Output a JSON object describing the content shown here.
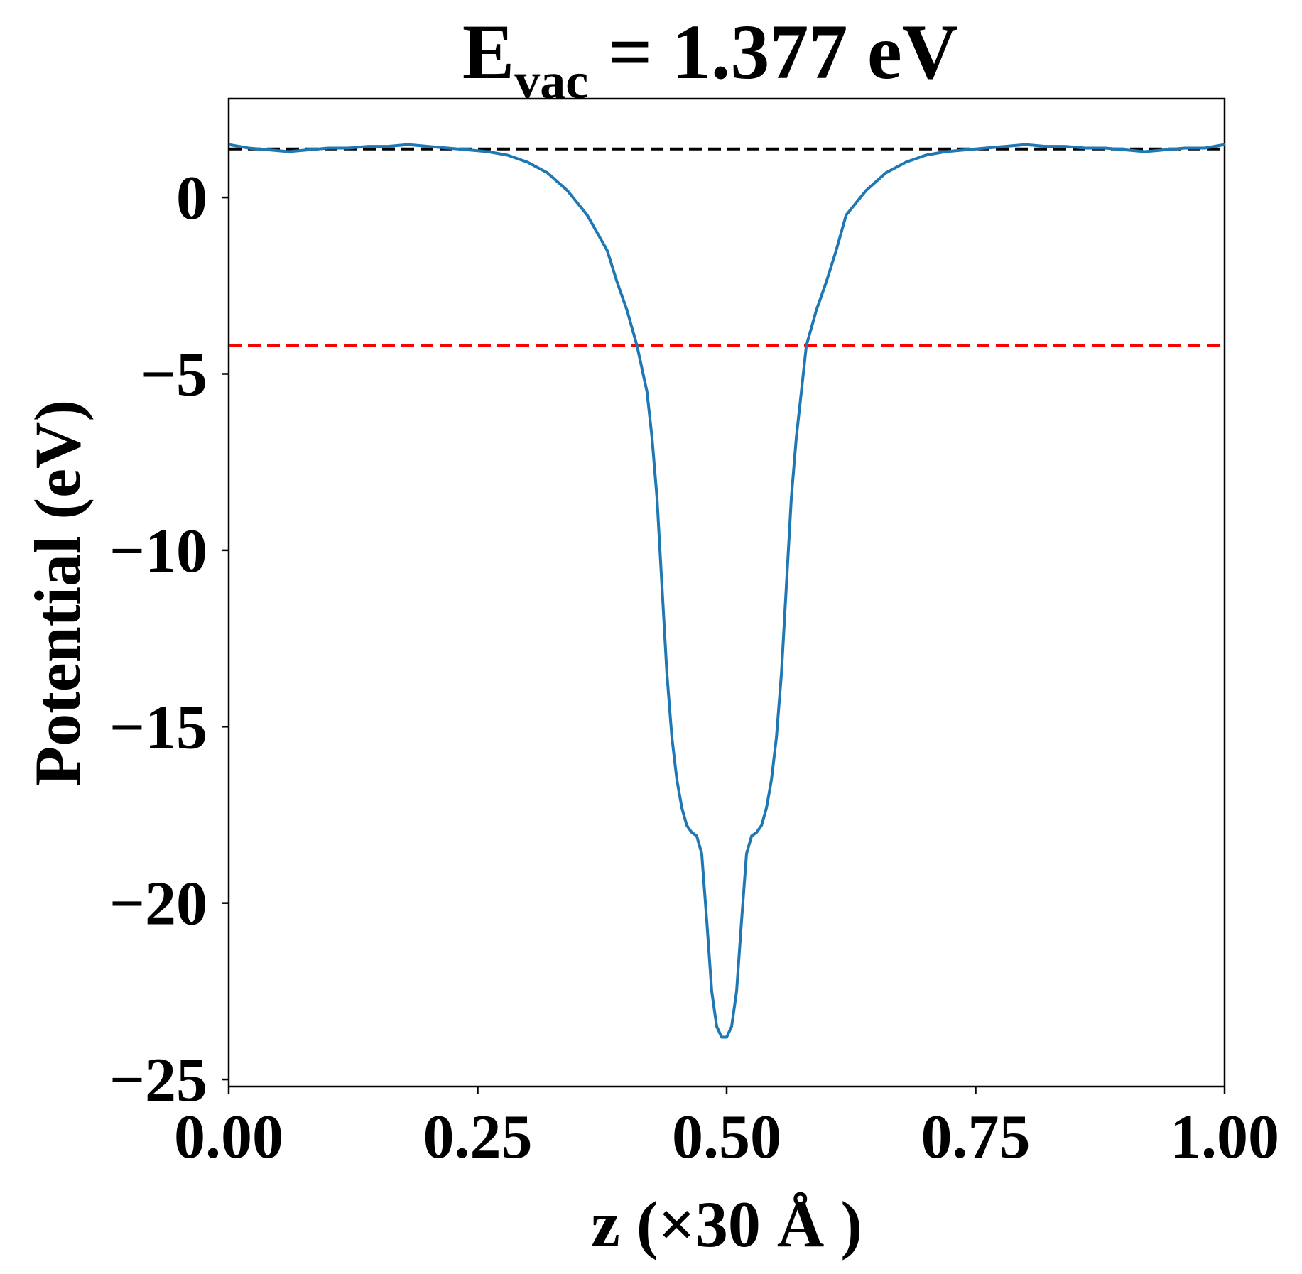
{
  "chart_data": {
    "type": "line",
    "title": {
      "prefix": "E",
      "subscript": "vac",
      "suffix": " = 1.377 eV"
    },
    "xlabel": "z (×30 Å )",
    "ylabel": "Potential (eV)",
    "xlim": [
      0.0,
      1.0
    ],
    "ylim": [
      -25.2,
      2.8
    ],
    "xticks": [
      0.0,
      0.25,
      0.5,
      0.75,
      1.0
    ],
    "xtick_labels": [
      "0.00",
      "0.25",
      "0.50",
      "0.75",
      "1.00"
    ],
    "yticks": [
      0,
      -5,
      -10,
      -15,
      -20,
      -25
    ],
    "ytick_labels": [
      "0",
      "−5",
      "−10",
      "−15",
      "−20",
      "−25"
    ],
    "grid": false,
    "series": [
      {
        "color": "#1f77b4",
        "x": [
          0.0,
          0.02,
          0.04,
          0.06,
          0.08,
          0.1,
          0.12,
          0.14,
          0.16,
          0.18,
          0.2,
          0.22,
          0.24,
          0.26,
          0.28,
          0.3,
          0.32,
          0.34,
          0.36,
          0.38,
          0.39,
          0.4,
          0.41,
          0.42,
          0.425,
          0.43,
          0.435,
          0.44,
          0.445,
          0.45,
          0.455,
          0.46,
          0.465,
          0.47,
          0.475,
          0.48,
          0.485,
          0.49,
          0.495,
          0.5,
          0.505,
          0.51,
          0.515,
          0.52,
          0.525,
          0.53,
          0.535,
          0.54,
          0.545,
          0.55,
          0.555,
          0.56,
          0.565,
          0.57,
          0.575,
          0.58,
          0.59,
          0.6,
          0.61,
          0.62,
          0.64,
          0.66,
          0.68,
          0.7,
          0.72,
          0.74,
          0.76,
          0.78,
          0.8,
          0.82,
          0.84,
          0.86,
          0.88,
          0.9,
          0.92,
          0.94,
          0.96,
          0.98,
          1.0
        ],
        "y": [
          1.5,
          1.4,
          1.35,
          1.3,
          1.35,
          1.4,
          1.4,
          1.45,
          1.45,
          1.5,
          1.45,
          1.4,
          1.35,
          1.3,
          1.2,
          1.0,
          0.7,
          0.2,
          -0.5,
          -1.5,
          -2.4,
          -3.2,
          -4.2,
          -5.5,
          -6.8,
          -8.5,
          -11.0,
          -13.5,
          -15.3,
          -16.5,
          -17.3,
          -17.8,
          -18.0,
          -18.1,
          -18.6,
          -20.5,
          -22.5,
          -23.5,
          -23.8,
          -23.8,
          -23.5,
          -22.5,
          -20.5,
          -18.6,
          -18.1,
          -18.0,
          -17.8,
          -17.3,
          -16.5,
          -15.3,
          -13.5,
          -11.0,
          -8.5,
          -6.8,
          -5.5,
          -4.2,
          -3.2,
          -2.4,
          -1.5,
          -0.5,
          0.2,
          0.7,
          1.0,
          1.2,
          1.3,
          1.35,
          1.4,
          1.45,
          1.5,
          1.45,
          1.45,
          1.4,
          1.4,
          1.35,
          1.3,
          1.35,
          1.4,
          1.4,
          1.5
        ]
      }
    ],
    "reference_lines": [
      {
        "y": 1.377,
        "color": "#000000",
        "style": "dashed"
      },
      {
        "y": -4.2,
        "color": "#ff0000",
        "style": "dashed"
      }
    ]
  }
}
